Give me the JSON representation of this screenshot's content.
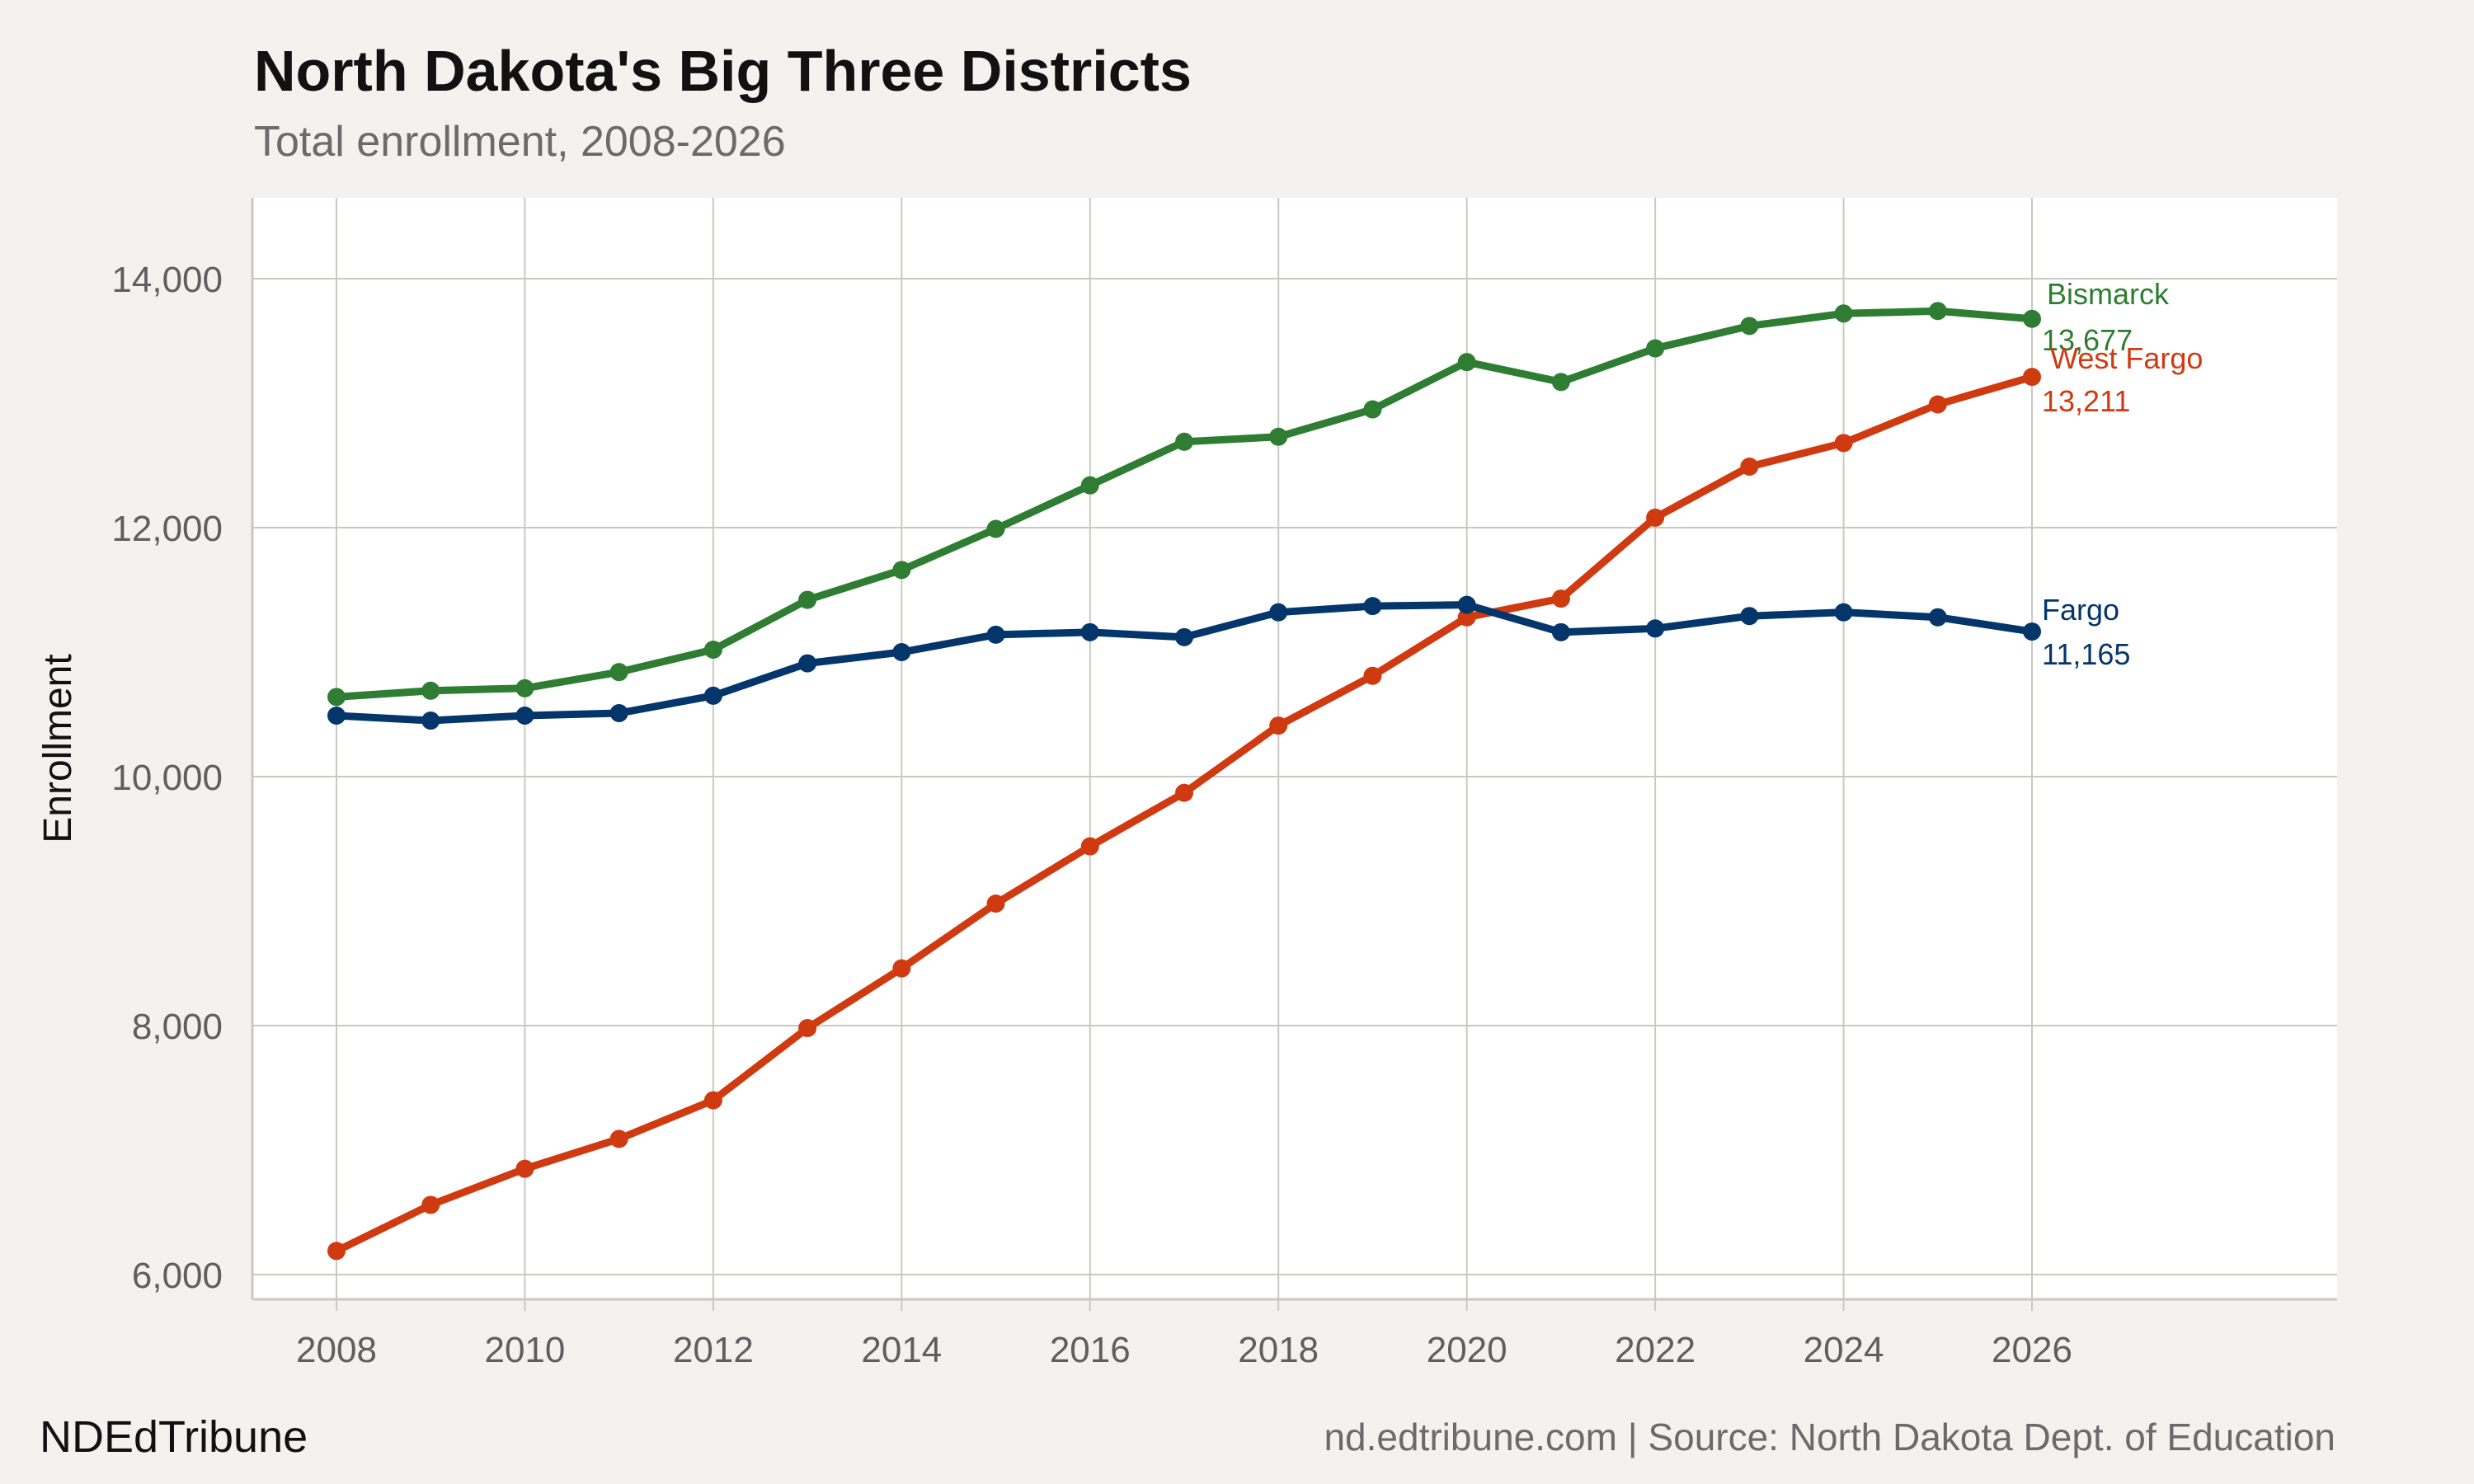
{
  "header": {
    "title": "North Dakota's Big Three Districts",
    "subtitle": "Total enrollment, 2008-2026"
  },
  "footer": {
    "brand": "NDEdTribune",
    "source": "nd.edtribune.com | Source: North Dakota Dept. of Education"
  },
  "colors": {
    "background": "#f4f2ee",
    "panel": "#ffffff",
    "grid": "#c9c9c3",
    "axis_text": "#5f5f5f"
  },
  "chart_data": {
    "type": "line",
    "title": "North Dakota's Big Three Districts",
    "subtitle": "Total enrollment, 2008-2026",
    "xlabel": "",
    "ylabel": "Enrollment",
    "x": [
      2008,
      2009,
      2010,
      2011,
      2012,
      2013,
      2014,
      2015,
      2016,
      2017,
      2018,
      2019,
      2020,
      2021,
      2022,
      2023,
      2024,
      2025,
      2026
    ],
    "xlim": [
      2008,
      2028
    ],
    "ylim": [
      5800,
      14650
    ],
    "xticks": [
      2008,
      2010,
      2012,
      2014,
      2016,
      2018,
      2020,
      2022,
      2024,
      2026
    ],
    "xtick_labels": [
      "2008",
      "2010",
      "2012",
      "2014",
      "2016",
      "2018",
      "2020",
      "2022",
      "2024",
      "2026"
    ],
    "yticks": [
      6000,
      8000,
      10000,
      12000,
      14000
    ],
    "ytick_labels": [
      "6,000",
      "8,000",
      "10,000",
      "12,000",
      "14,000"
    ],
    "grid": true,
    "legend": "none (direct labels at line ends)",
    "series": [
      {
        "name": "Bismarck",
        "color": "#2e7d32",
        "end_label": "13,677",
        "values": [
          10640,
          10690,
          10710,
          10840,
          11020,
          11420,
          11660,
          11990,
          12340,
          12690,
          12730,
          12950,
          13330,
          13170,
          13440,
          13620,
          13720,
          13740,
          13677
        ]
      },
      {
        "name": "West Fargo",
        "color": "#d03a10",
        "end_label": "13,211",
        "values": [
          6190,
          6560,
          6850,
          7090,
          7400,
          7980,
          8460,
          8980,
          9440,
          9870,
          10410,
          10810,
          11280,
          11430,
          12080,
          12490,
          12680,
          12990,
          13211
        ]
      },
      {
        "name": "Fargo",
        "color": "#04366b",
        "end_label": "11,165",
        "values": [
          10490,
          10450,
          10490,
          10510,
          10650,
          10910,
          11000,
          11140,
          11160,
          11120,
          11320,
          11370,
          11380,
          11160,
          11190,
          11290,
          11320,
          11280,
          11165
        ]
      }
    ]
  }
}
